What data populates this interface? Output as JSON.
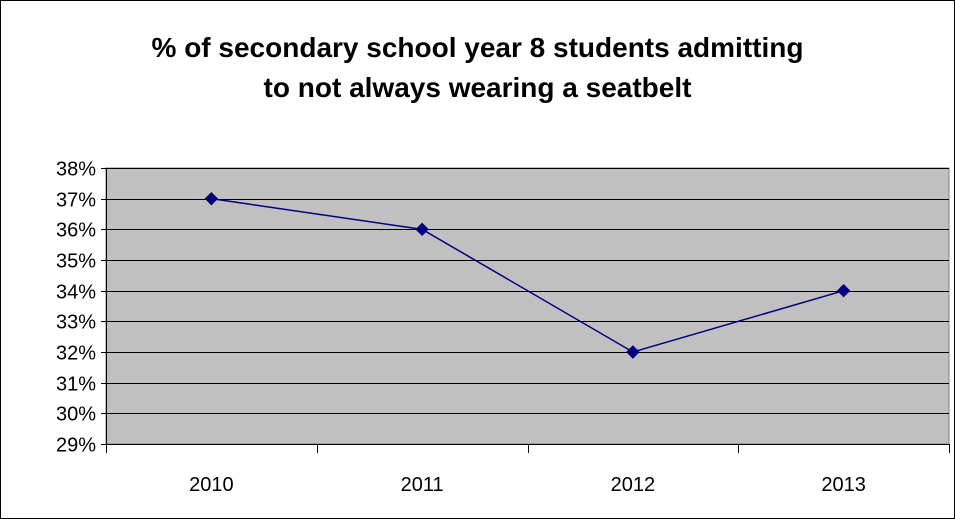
{
  "chart_data": {
    "type": "line",
    "title": [
      "% of secondary school year 8 students admitting",
      "to not always wearing a seatbelt"
    ],
    "xlabel": "",
    "ylabel": "",
    "categories": [
      "2010",
      "2011",
      "2012",
      "2013"
    ],
    "series": [
      {
        "values": [
          0.37,
          0.36,
          0.32,
          0.34
        ],
        "color": "#00007f"
      }
    ],
    "ylim": [
      0.29,
      0.38
    ],
    "yticks": [
      "29%",
      "30%",
      "31%",
      "32%",
      "33%",
      "34%",
      "35%",
      "36%",
      "37%",
      "38%"
    ],
    "grid": true,
    "legend": "none",
    "plot_background": "#c0c0c0"
  }
}
